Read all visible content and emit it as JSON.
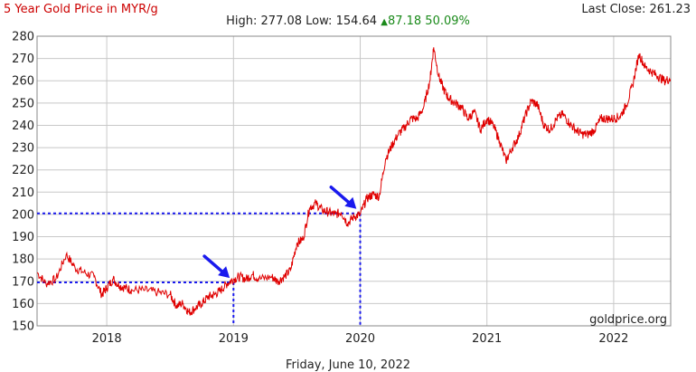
{
  "header": {
    "title": "5 Year Gold Price in MYR/g",
    "last_close": "Last Close: 261.23",
    "high_label": "High:",
    "high_value": "277.08",
    "low_label": "Low:",
    "low_value": "154.64",
    "change_value": "87.18",
    "change_percent": "50.09%"
  },
  "footer": {
    "date": "Friday, June 10, 2022"
  },
  "watermark": "goldprice.org",
  "colors": {
    "title": "#cc0000",
    "line": "#e00000",
    "grid": "#c8c8c8",
    "change_up": "#1a8a1a",
    "annotation": "#1a1aee",
    "arrow": "#1a1aee"
  },
  "chart_data": {
    "type": "line",
    "title": "5 Year Gold Price in MYR/g",
    "xlabel": "",
    "ylabel": "",
    "ylim": [
      150,
      280
    ],
    "xlim": [
      2017.45,
      2022.45
    ],
    "y_ticks": [
      150,
      160,
      170,
      180,
      190,
      200,
      210,
      220,
      230,
      240,
      250,
      260,
      270,
      280
    ],
    "x_ticks": [
      {
        "label": "2018",
        "x": 2018.0
      },
      {
        "label": "2019",
        "x": 2019.0
      },
      {
        "label": "2020",
        "x": 2020.0
      },
      {
        "label": "2021",
        "x": 2021.0
      },
      {
        "label": "2022",
        "x": 2022.0
      }
    ],
    "grid": true,
    "series": [
      {
        "x": [
          2017.45,
          2017.52,
          2017.6,
          2017.68,
          2017.75,
          2017.82,
          2017.9,
          2017.96,
          2018.0,
          2018.05,
          2018.1,
          2018.15,
          2018.2,
          2018.3,
          2018.4,
          2018.5,
          2018.55,
          2018.6,
          2018.65,
          2018.7,
          2018.75,
          2018.8,
          2018.85,
          2018.9,
          2018.95,
          2019.0,
          2019.05,
          2019.1,
          2019.15,
          2019.2,
          2019.3,
          2019.35,
          2019.4,
          2019.45,
          2019.5,
          2019.55,
          2019.6,
          2019.65,
          2019.7,
          2019.75,
          2019.8,
          2019.85,
          2019.9,
          2019.95,
          2020.0,
          2020.05,
          2020.1,
          2020.15,
          2020.2,
          2020.25,
          2020.3,
          2020.35,
          2020.4,
          2020.45,
          2020.5,
          2020.55,
          2020.58,
          2020.62,
          2020.66,
          2020.7,
          2020.75,
          2020.8,
          2020.85,
          2020.9,
          2020.95,
          2021.0,
          2021.05,
          2021.1,
          2021.15,
          2021.2,
          2021.25,
          2021.3,
          2021.35,
          2021.4,
          2021.45,
          2021.5,
          2021.55,
          2021.6,
          2021.65,
          2021.7,
          2021.75,
          2021.8,
          2021.85,
          2021.9,
          2021.95,
          2022.0,
          2022.05,
          2022.1,
          2022.15,
          2022.2,
          2022.25,
          2022.3,
          2022.35,
          2022.4,
          2022.45
        ],
        "values": [
          174,
          169,
          171,
          182,
          176,
          174,
          172,
          164,
          167,
          171,
          168,
          167,
          166,
          166,
          165,
          164,
          159,
          160,
          156,
          158,
          160,
          163,
          164,
          166,
          169,
          171,
          172,
          171,
          173,
          171,
          172,
          170,
          172,
          175,
          187,
          189,
          203,
          205,
          202,
          201,
          200,
          201,
          196,
          199,
          200,
          207,
          209,
          208,
          225,
          231,
          236,
          239,
          243,
          243,
          248,
          260,
          275,
          262,
          256,
          252,
          250,
          248,
          243,
          246,
          238,
          243,
          240,
          233,
          224,
          230,
          235,
          244,
          251,
          249,
          240,
          238,
          243,
          245,
          241,
          238,
          236,
          236,
          238,
          243,
          243,
          243,
          244,
          249,
          258,
          272,
          266,
          264,
          262,
          260,
          261
        ]
      }
    ],
    "annotations": {
      "dotted_levels": [
        {
          "y": 169.5,
          "x_end": 2019.0
        },
        {
          "y": 200.5,
          "x_end": 2020.0
        }
      ],
      "arrows_at": [
        {
          "x": 2018.97,
          "y": 171.5
        },
        {
          "x": 2019.97,
          "y": 202.5
        }
      ]
    }
  }
}
